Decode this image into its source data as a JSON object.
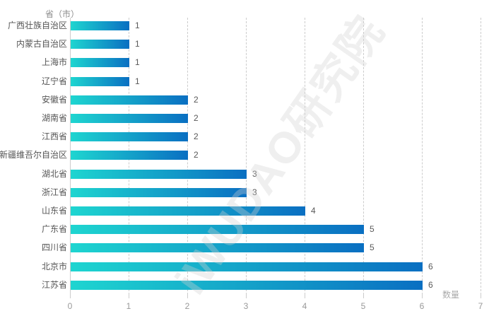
{
  "chart_data": {
    "type": "bar",
    "orientation": "horizontal",
    "ylabel": "省（市）",
    "xlabel": "数量",
    "watermark": "iWUDAO研究院",
    "categories": [
      "广西壮族自治区",
      "内蒙古自治区",
      "上海市",
      "辽宁省",
      "安徽省",
      "湖南省",
      "江西省",
      "新疆维吾尔自治区",
      "湖北省",
      "浙江省",
      "山东省",
      "广东省",
      "四川省",
      "北京市",
      "江苏省"
    ],
    "values": [
      1,
      1,
      1,
      1,
      2,
      2,
      2,
      2,
      3,
      3,
      4,
      5,
      5,
      6,
      6
    ],
    "xlim": [
      0,
      7
    ],
    "xticks": [
      0,
      1,
      2,
      3,
      4,
      5,
      6,
      7
    ],
    "grid": "vertical-dashed",
    "legend": "none",
    "colors": {
      "bar_gradient_start": "#1ed5d0",
      "bar_gradient_end": "#0a6fc2",
      "grid_line": "#cccccc",
      "category_label": "#555555",
      "value_label": "#595959",
      "tick_label": "#999999",
      "axis_title": "#8c8c8c"
    }
  }
}
